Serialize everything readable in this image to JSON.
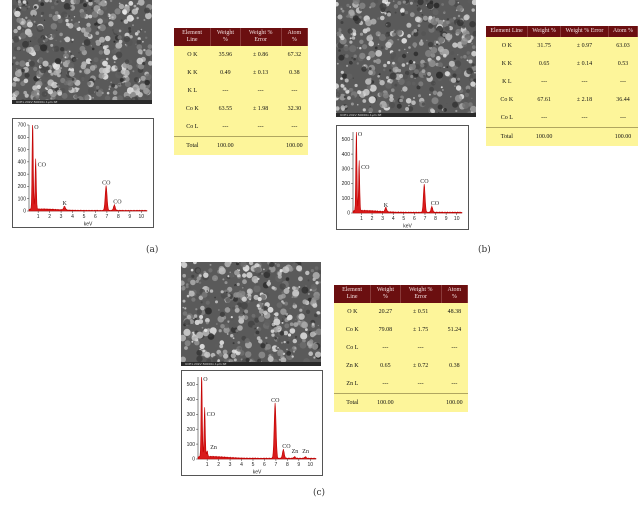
{
  "panels": [
    {
      "id": "a",
      "caption": "(a)",
      "sem_label": "UCE1·20kV·50000x·1µm·SE",
      "table": {
        "headers": [
          "Element Line",
          "Weight %",
          "Weight % Error",
          "Atom %"
        ],
        "rows": [
          [
            "O K",
            "35.96",
            "± 0.86",
            "67.32"
          ],
          [
            "K K",
            "0.49",
            "± 0.13",
            "0.38"
          ],
          [
            "K L",
            "---",
            "---",
            "---"
          ],
          [
            "Co K",
            "63.55",
            "± 1.98",
            "32.30"
          ],
          [
            "Co L",
            "---",
            "---",
            "---"
          ],
          [
            "Total",
            "100.00",
            "",
            "100.00"
          ]
        ]
      },
      "spectrum": {
        "xlabel": "keV",
        "xticks": [
          "1",
          "2",
          "3",
          "4",
          "5",
          "6",
          "7",
          "8",
          "9",
          "10"
        ],
        "yticks": [
          "0",
          "100",
          "200",
          "300",
          "400",
          "500",
          "600",
          "700"
        ],
        "ymax": 700,
        "peaks": [
          {
            "x": 0.52,
            "y": 720,
            "label": "O"
          },
          {
            "x": 0.78,
            "y": 410,
            "label": "CO"
          },
          {
            "x": 3.3,
            "y": 30,
            "label": "K"
          },
          {
            "x": 6.93,
            "y": 200,
            "label": "CO"
          },
          {
            "x": 7.65,
            "y": 45,
            "label": "CO"
          }
        ]
      }
    },
    {
      "id": "b",
      "caption": "(b)",
      "sem_label": "UCE1·20kV·50000x·1µm·SE",
      "table": {
        "headers": [
          "Element Line",
          "Weight %",
          "Weight % Error",
          "Atom %"
        ],
        "rows": [
          [
            "O K",
            "31.75",
            "± 0.97",
            "63.03"
          ],
          [
            "K K",
            "0.65",
            "± 0.14",
            "0.53"
          ],
          [
            "K L",
            "---",
            "---",
            "---"
          ],
          [
            "Co K",
            "67.61",
            "± 2.18",
            "36.44"
          ],
          [
            "Co L",
            "---",
            "---",
            "---"
          ],
          [
            "Total",
            "100.00",
            "",
            "100.00"
          ]
        ]
      },
      "spectrum": {
        "xlabel": "keV",
        "xticks": [
          "1",
          "2",
          "3",
          "4",
          "5",
          "6",
          "7",
          "8",
          "9",
          "10"
        ],
        "yticks": [
          "0",
          "100",
          "200",
          "300",
          "400",
          "500"
        ],
        "ymax": 550,
        "peaks": [
          {
            "x": 0.52,
            "y": 560,
            "label": "O"
          },
          {
            "x": 0.78,
            "y": 340,
            "label": "CO"
          },
          {
            "x": 3.3,
            "y": 30,
            "label": "K"
          },
          {
            "x": 6.93,
            "y": 190,
            "label": "CO"
          },
          {
            "x": 7.65,
            "y": 40,
            "label": "CO"
          }
        ]
      }
    },
    {
      "id": "c",
      "caption": "(c)",
      "sem_label": "UCE1·20kV·50000x·1µm·SE",
      "table": {
        "headers": [
          "Element Line",
          "Weight %",
          "Weight % Error",
          "Atom %"
        ],
        "rows": [
          [
            "O K",
            "20.27",
            "± 0.51",
            "48.38"
          ],
          [
            "Co K",
            "79.08",
            "± 1.75",
            "51.24"
          ],
          [
            "Co L",
            "---",
            "---",
            "---"
          ],
          [
            "Zn K",
            "0.65",
            "± 0.72",
            "0.38"
          ],
          [
            "Zn L",
            "---",
            "---",
            "---"
          ],
          [
            "Total",
            "100.00",
            "",
            "100.00"
          ]
        ]
      },
      "spectrum": {
        "xlabel": "keV",
        "xticks": [
          "1",
          "2",
          "3",
          "4",
          "5",
          "6",
          "7",
          "8",
          "9",
          "10"
        ],
        "yticks": [
          "0",
          "100",
          "200",
          "300",
          "400",
          "500"
        ],
        "ymax": 550,
        "peaks": [
          {
            "x": 0.52,
            "y": 560,
            "label": "O"
          },
          {
            "x": 0.78,
            "y": 330,
            "label": "CO"
          },
          {
            "x": 1.0,
            "y": 40,
            "label": "Zn"
          },
          {
            "x": 6.93,
            "y": 370,
            "label": "CO"
          },
          {
            "x": 7.65,
            "y": 60,
            "label": "CO"
          },
          {
            "x": 8.63,
            "y": 10,
            "label": "Zn"
          },
          {
            "x": 9.57,
            "y": 10,
            "label": "Zn"
          }
        ]
      }
    }
  ]
}
